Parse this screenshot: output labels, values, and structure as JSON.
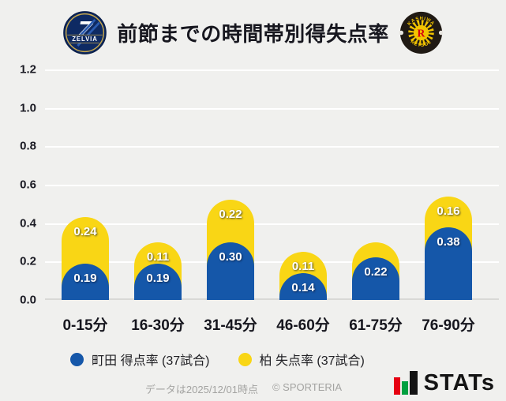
{
  "header": {
    "title": "前節までの時間帯別得失点率",
    "home_crest_text": "ZELVIA",
    "away_crest_top": "KASHIWA",
    "away_crest_bottom": "REYSOL",
    "away_crest_letter": "R"
  },
  "colors": {
    "machida_blue": "#1557a9",
    "kashiwa_yellow": "#f9d615",
    "background": "#f0f0ee",
    "gridline": "#ffffff",
    "baseline": "#d9d9d6"
  },
  "chart_data": {
    "type": "bar",
    "stacked": true,
    "title": "前節までの時間帯別得失点率",
    "categories": [
      "0-15分",
      "16-30分",
      "31-45分",
      "46-60分",
      "61-75分",
      "76-90分"
    ],
    "series": [
      {
        "name": "町田 得点率 (37試合)",
        "color": "#1557a9",
        "values": [
          0.19,
          0.19,
          0.3,
          0.14,
          0.22,
          0.38
        ],
        "labels": [
          "0.19",
          "0.19",
          "0.30",
          "0.14",
          "0.22",
          "0.38"
        ]
      },
      {
        "name": "柏 失点率 (37試合)",
        "color": "#f9d615",
        "values": [
          0.24,
          0.11,
          0.22,
          0.11,
          0.08,
          0.16
        ],
        "labels": [
          "0.24",
          "0.11",
          "0.22",
          "0.11",
          "",
          "0.16"
        ]
      }
    ],
    "ylim": [
      0,
      1.2
    ],
    "yticks": [
      "1.2",
      "1.0",
      "0.8",
      "0.6",
      "0.4",
      "0.2",
      "0.0"
    ],
    "grid": true,
    "legend_position": "bottom"
  },
  "legend": {
    "items": [
      {
        "label": "町田 得点率 (37試合)",
        "color": "#1557a9"
      },
      {
        "label": "柏 失点率 (37試合)",
        "color": "#f9d615"
      }
    ]
  },
  "footer": {
    "note": "データは2025/12/01時点",
    "copyright": "© SPORTERIA",
    "brand": "STATs"
  }
}
